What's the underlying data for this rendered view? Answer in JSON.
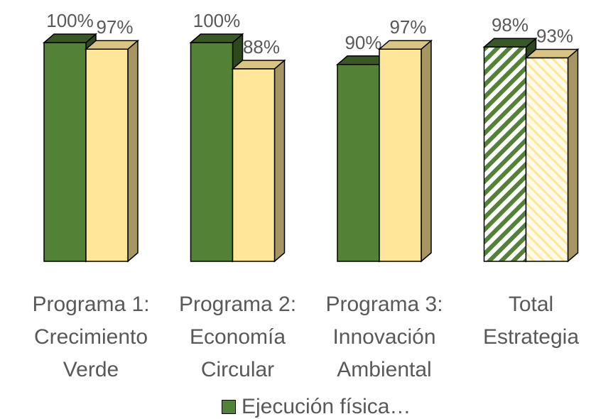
{
  "chart_data": {
    "type": "bar3d",
    "categories": [
      "Programa 1: Crecimiento Verde",
      "Programa 2: Economía Circular",
      "Programa 3: Innovación Ambiental",
      "Total Estrategia"
    ],
    "series": [
      {
        "name": "Ejecución física…",
        "color": "#538135",
        "values": [
          100,
          100,
          90,
          98
        ],
        "value_labels": [
          "100%",
          "100%",
          "90%",
          "98%"
        ]
      },
      {
        "color": "#ffe699",
        "values": [
          97,
          88,
          97,
          93
        ],
        "value_labels": [
          "97%",
          "88%",
          "97%",
          "93%"
        ]
      }
    ],
    "legend": "bottom"
  }
}
